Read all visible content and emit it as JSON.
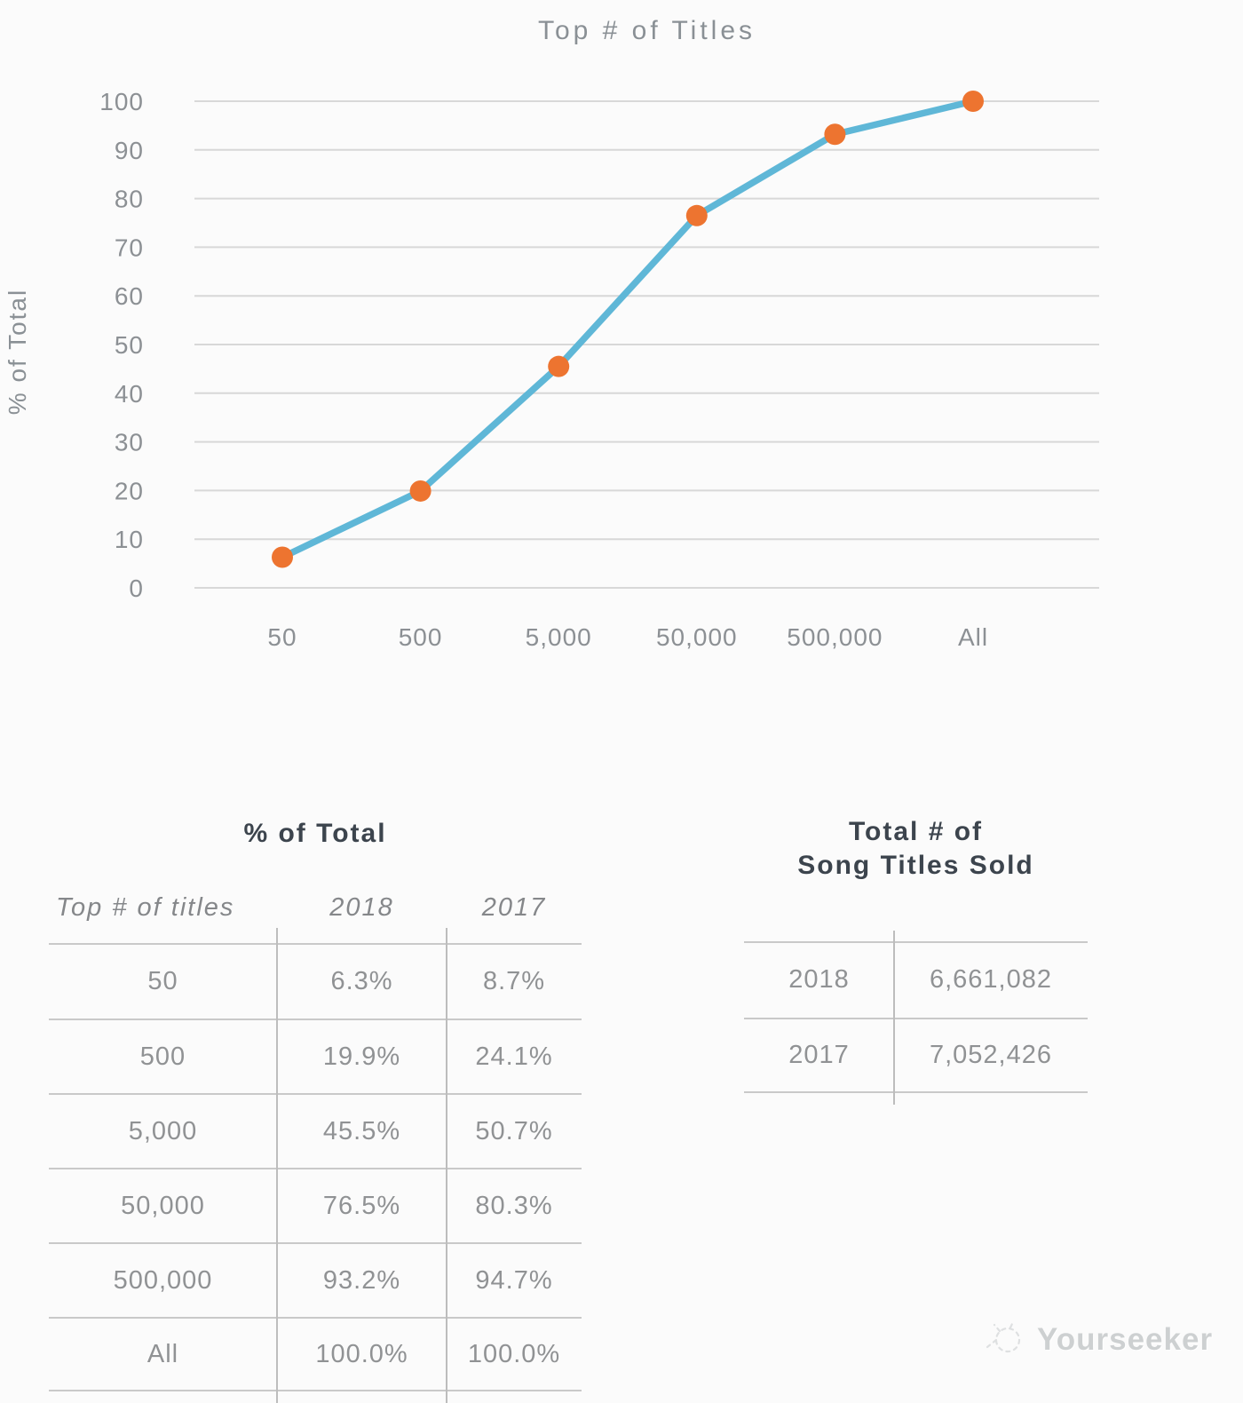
{
  "chart_data": {
    "type": "line",
    "title": "Top # of Titles",
    "ylabel": "% of Total",
    "xlabel": "",
    "categories": [
      "50",
      "500",
      "5,000",
      "50,000",
      "500,000",
      "All"
    ],
    "series": [
      {
        "name": "2018",
        "values": [
          6.3,
          19.9,
          45.5,
          76.5,
          93.2,
          100.0
        ]
      }
    ],
    "ylim": [
      0,
      100
    ],
    "yticks": [
      0,
      10,
      20,
      30,
      40,
      50,
      60,
      70,
      80,
      90,
      100
    ],
    "grid": true,
    "legend": "none",
    "line_color": "#5fb7d7",
    "marker_color": "#ed7430",
    "gridline_color": "#d8d8d8",
    "axis_text_color": "#8c9094"
  },
  "pct_table": {
    "title": "% of Total",
    "columns": [
      "Top # of titles",
      "2018",
      "2017"
    ],
    "rows": [
      [
        "50",
        "6.3%",
        "8.7%"
      ],
      [
        "500",
        "19.9%",
        "24.1%"
      ],
      [
        "5,000",
        "45.5%",
        "50.7%"
      ],
      [
        "50,000",
        "76.5%",
        "80.3%"
      ],
      [
        "500,000",
        "93.2%",
        "94.7%"
      ],
      [
        "All",
        "100.0%",
        "100.0%"
      ]
    ]
  },
  "totals_table": {
    "title_line1": "Total # of",
    "title_line2": "Song Titles Sold",
    "rows": [
      [
        "2018",
        "6,661,082"
      ],
      [
        "2017",
        "7,052,426"
      ]
    ]
  },
  "watermark": {
    "label": "Yourseeker"
  }
}
